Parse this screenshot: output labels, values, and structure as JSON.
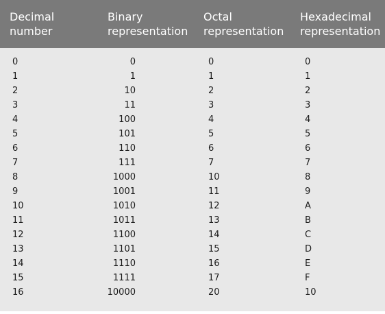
{
  "headers": {
    "decimal": [
      "Decimal",
      "number"
    ],
    "binary": [
      "Binary",
      "representation"
    ],
    "octal": [
      "Octal",
      "representation"
    ],
    "hex": [
      "Hexadecimal",
      "representation"
    ]
  },
  "rows": [
    {
      "dec": "0",
      "bin": "0",
      "oct": "0",
      "hex": "0"
    },
    {
      "dec": "1",
      "bin": "1",
      "oct": "1",
      "hex": "1"
    },
    {
      "dec": "2",
      "bin": "10",
      "oct": "2",
      "hex": "2"
    },
    {
      "dec": "3",
      "bin": "11",
      "oct": "3",
      "hex": "3"
    },
    {
      "dec": "4",
      "bin": "100",
      "oct": "4",
      "hex": "4"
    },
    {
      "dec": "5",
      "bin": "101",
      "oct": "5",
      "hex": "5"
    },
    {
      "dec": "6",
      "bin": "110",
      "oct": "6",
      "hex": "6"
    },
    {
      "dec": "7",
      "bin": "111",
      "oct": "7",
      "hex": "7"
    },
    {
      "dec": "8",
      "bin": "1000",
      "oct": "10",
      "hex": "8"
    },
    {
      "dec": "9",
      "bin": "1001",
      "oct": "11",
      "hex": "9"
    },
    {
      "dec": "10",
      "bin": "1010",
      "oct": "12",
      "hex": "A"
    },
    {
      "dec": "11",
      "bin": "1011",
      "oct": "13",
      "hex": "B"
    },
    {
      "dec": "12",
      "bin": "1100",
      "oct": "14",
      "hex": "C"
    },
    {
      "dec": "13",
      "bin": "1101",
      "oct": "15",
      "hex": "D"
    },
    {
      "dec": "14",
      "bin": "1110",
      "oct": "16",
      "hex": "E"
    },
    {
      "dec": "15",
      "bin": "1111",
      "oct": "17",
      "hex": "F"
    },
    {
      "dec": "16",
      "bin": "10000",
      "oct": "20",
      "hex": "10"
    }
  ]
}
